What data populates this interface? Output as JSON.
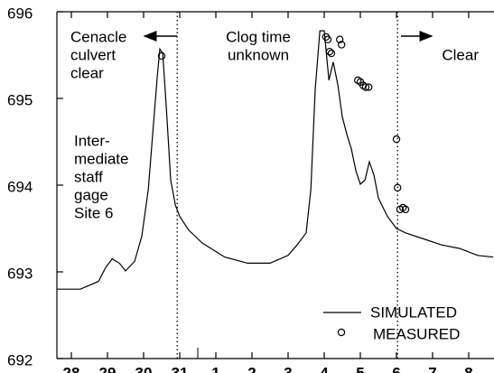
{
  "chart_data": {
    "type": "line",
    "x": [
      27.6,
      28.25,
      28.75,
      28.95,
      29.13,
      29.33,
      29.5,
      29.75,
      29.95,
      30.13,
      30.25,
      30.38,
      30.45,
      30.53,
      30.63,
      30.75,
      30.88,
      31.0,
      31.25,
      31.63,
      32.25,
      32.88,
      33.5,
      34.0,
      34.25,
      34.5,
      34.63,
      34.75,
      34.88,
      35.0,
      35.13,
      35.25,
      35.38,
      35.5,
      35.63,
      35.75,
      35.88,
      36.0,
      36.13,
      36.25,
      36.38,
      36.5,
      36.75,
      37.0,
      37.25,
      37.75,
      38.25,
      38.75,
      39.25,
      39.68
    ],
    "series": [
      {
        "name": "SIMULATED",
        "color": "#000000",
        "values": [
          692.8,
          692.8,
          692.89,
          693.05,
          693.15,
          693.1,
          693.01,
          693.12,
          693.41,
          693.95,
          694.58,
          695.26,
          695.57,
          695.52,
          694.89,
          694.06,
          693.77,
          693.64,
          693.48,
          693.33,
          693.17,
          693.1,
          693.1,
          693.19,
          693.31,
          693.45,
          693.95,
          695.1,
          695.78,
          695.78,
          695.21,
          695.42,
          695.15,
          694.79,
          694.58,
          694.42,
          694.16,
          694.01,
          694.06,
          694.27,
          694.11,
          693.85,
          693.64,
          693.5,
          693.45,
          693.38,
          693.31,
          693.27,
          693.19,
          693.17
        ]
      }
    ],
    "measured": {
      "name": "MEASURED",
      "color": "#000000",
      "x": [
        30.5,
        35.05,
        35.1,
        35.15,
        35.2,
        35.43,
        35.48,
        35.93,
        36.0,
        36.08,
        36.15,
        36.23,
        37.0,
        37.03,
        37.1,
        37.18,
        37.25
      ],
      "values": [
        695.49,
        695.71,
        695.68,
        695.54,
        695.52,
        695.68,
        695.62,
        695.21,
        695.19,
        695.15,
        695.13,
        695.13,
        694.53,
        693.97,
        693.72,
        693.74,
        693.72
      ]
    },
    "vlines": [
      30.93,
      37.03
    ],
    "annotations": [
      {
        "lines": [
          "Cenacle",
          "culvert",
          "clear"
        ]
      },
      {
        "lines": [
          "Clog time",
          "unknown"
        ]
      },
      {
        "lines": [
          "Clear"
        ]
      },
      {
        "lines": [
          "Inter-",
          "mediate",
          "staff",
          "gage",
          "Site 6"
        ]
      }
    ],
    "xlim": [
      27.6,
      39.7
    ],
    "xticks": [
      28,
      29,
      30,
      31,
      {
        "value": 32,
        "label": "1"
      },
      {
        "value": 33,
        "label": "2"
      },
      {
        "value": 34,
        "label": "3"
      },
      {
        "value": 35,
        "label": "4"
      },
      {
        "value": 36,
        "label": "5"
      },
      {
        "value": 37,
        "label": "6"
      },
      {
        "value": 38,
        "label": "7"
      },
      {
        "value": 39,
        "label": "8"
      }
    ],
    "ylim": [
      692,
      696
    ],
    "yticks": [
      692,
      693,
      694,
      695,
      696
    ],
    "grid": false
  }
}
